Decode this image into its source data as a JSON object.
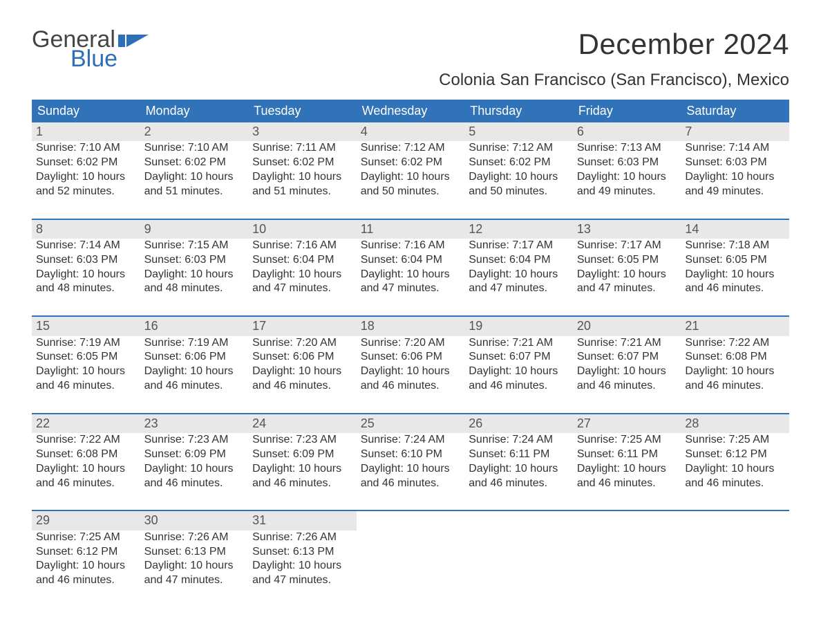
{
  "logo": {
    "text1": "General",
    "text2": "Blue",
    "flag_color": "#2d6fb6"
  },
  "header": {
    "month_title": "December 2024",
    "location": "Colonia San Francisco (San Francisco), Mexico"
  },
  "colors": {
    "header_bg": "#3173b8",
    "header_text": "#ffffff",
    "daynum_bg": "#e8e8e8",
    "daynum_border": "#3173b8",
    "body_text": "#333333",
    "page_bg": "#ffffff"
  },
  "weekdays": [
    "Sunday",
    "Monday",
    "Tuesday",
    "Wednesday",
    "Thursday",
    "Friday",
    "Saturday"
  ],
  "weeks": [
    [
      {
        "day": "1",
        "sunrise": "Sunrise: 7:10 AM",
        "sunset": "Sunset: 6:02 PM",
        "d1": "Daylight: 10 hours",
        "d2": "and 52 minutes."
      },
      {
        "day": "2",
        "sunrise": "Sunrise: 7:10 AM",
        "sunset": "Sunset: 6:02 PM",
        "d1": "Daylight: 10 hours",
        "d2": "and 51 minutes."
      },
      {
        "day": "3",
        "sunrise": "Sunrise: 7:11 AM",
        "sunset": "Sunset: 6:02 PM",
        "d1": "Daylight: 10 hours",
        "d2": "and 51 minutes."
      },
      {
        "day": "4",
        "sunrise": "Sunrise: 7:12 AM",
        "sunset": "Sunset: 6:02 PM",
        "d1": "Daylight: 10 hours",
        "d2": "and 50 minutes."
      },
      {
        "day": "5",
        "sunrise": "Sunrise: 7:12 AM",
        "sunset": "Sunset: 6:02 PM",
        "d1": "Daylight: 10 hours",
        "d2": "and 50 minutes."
      },
      {
        "day": "6",
        "sunrise": "Sunrise: 7:13 AM",
        "sunset": "Sunset: 6:03 PM",
        "d1": "Daylight: 10 hours",
        "d2": "and 49 minutes."
      },
      {
        "day": "7",
        "sunrise": "Sunrise: 7:14 AM",
        "sunset": "Sunset: 6:03 PM",
        "d1": "Daylight: 10 hours",
        "d2": "and 49 minutes."
      }
    ],
    [
      {
        "day": "8",
        "sunrise": "Sunrise: 7:14 AM",
        "sunset": "Sunset: 6:03 PM",
        "d1": "Daylight: 10 hours",
        "d2": "and 48 minutes."
      },
      {
        "day": "9",
        "sunrise": "Sunrise: 7:15 AM",
        "sunset": "Sunset: 6:03 PM",
        "d1": "Daylight: 10 hours",
        "d2": "and 48 minutes."
      },
      {
        "day": "10",
        "sunrise": "Sunrise: 7:16 AM",
        "sunset": "Sunset: 6:04 PM",
        "d1": "Daylight: 10 hours",
        "d2": "and 47 minutes."
      },
      {
        "day": "11",
        "sunrise": "Sunrise: 7:16 AM",
        "sunset": "Sunset: 6:04 PM",
        "d1": "Daylight: 10 hours",
        "d2": "and 47 minutes."
      },
      {
        "day": "12",
        "sunrise": "Sunrise: 7:17 AM",
        "sunset": "Sunset: 6:04 PM",
        "d1": "Daylight: 10 hours",
        "d2": "and 47 minutes."
      },
      {
        "day": "13",
        "sunrise": "Sunrise: 7:17 AM",
        "sunset": "Sunset: 6:05 PM",
        "d1": "Daylight: 10 hours",
        "d2": "and 47 minutes."
      },
      {
        "day": "14",
        "sunrise": "Sunrise: 7:18 AM",
        "sunset": "Sunset: 6:05 PM",
        "d1": "Daylight: 10 hours",
        "d2": "and 46 minutes."
      }
    ],
    [
      {
        "day": "15",
        "sunrise": "Sunrise: 7:19 AM",
        "sunset": "Sunset: 6:05 PM",
        "d1": "Daylight: 10 hours",
        "d2": "and 46 minutes."
      },
      {
        "day": "16",
        "sunrise": "Sunrise: 7:19 AM",
        "sunset": "Sunset: 6:06 PM",
        "d1": "Daylight: 10 hours",
        "d2": "and 46 minutes."
      },
      {
        "day": "17",
        "sunrise": "Sunrise: 7:20 AM",
        "sunset": "Sunset: 6:06 PM",
        "d1": "Daylight: 10 hours",
        "d2": "and 46 minutes."
      },
      {
        "day": "18",
        "sunrise": "Sunrise: 7:20 AM",
        "sunset": "Sunset: 6:06 PM",
        "d1": "Daylight: 10 hours",
        "d2": "and 46 minutes."
      },
      {
        "day": "19",
        "sunrise": "Sunrise: 7:21 AM",
        "sunset": "Sunset: 6:07 PM",
        "d1": "Daylight: 10 hours",
        "d2": "and 46 minutes."
      },
      {
        "day": "20",
        "sunrise": "Sunrise: 7:21 AM",
        "sunset": "Sunset: 6:07 PM",
        "d1": "Daylight: 10 hours",
        "d2": "and 46 minutes."
      },
      {
        "day": "21",
        "sunrise": "Sunrise: 7:22 AM",
        "sunset": "Sunset: 6:08 PM",
        "d1": "Daylight: 10 hours",
        "d2": "and 46 minutes."
      }
    ],
    [
      {
        "day": "22",
        "sunrise": "Sunrise: 7:22 AM",
        "sunset": "Sunset: 6:08 PM",
        "d1": "Daylight: 10 hours",
        "d2": "and 46 minutes."
      },
      {
        "day": "23",
        "sunrise": "Sunrise: 7:23 AM",
        "sunset": "Sunset: 6:09 PM",
        "d1": "Daylight: 10 hours",
        "d2": "and 46 minutes."
      },
      {
        "day": "24",
        "sunrise": "Sunrise: 7:23 AM",
        "sunset": "Sunset: 6:09 PM",
        "d1": "Daylight: 10 hours",
        "d2": "and 46 minutes."
      },
      {
        "day": "25",
        "sunrise": "Sunrise: 7:24 AM",
        "sunset": "Sunset: 6:10 PM",
        "d1": "Daylight: 10 hours",
        "d2": "and 46 minutes."
      },
      {
        "day": "26",
        "sunrise": "Sunrise: 7:24 AM",
        "sunset": "Sunset: 6:11 PM",
        "d1": "Daylight: 10 hours",
        "d2": "and 46 minutes."
      },
      {
        "day": "27",
        "sunrise": "Sunrise: 7:25 AM",
        "sunset": "Sunset: 6:11 PM",
        "d1": "Daylight: 10 hours",
        "d2": "and 46 minutes."
      },
      {
        "day": "28",
        "sunrise": "Sunrise: 7:25 AM",
        "sunset": "Sunset: 6:12 PM",
        "d1": "Daylight: 10 hours",
        "d2": "and 46 minutes."
      }
    ],
    [
      {
        "day": "29",
        "sunrise": "Sunrise: 7:25 AM",
        "sunset": "Sunset: 6:12 PM",
        "d1": "Daylight: 10 hours",
        "d2": "and 46 minutes."
      },
      {
        "day": "30",
        "sunrise": "Sunrise: 7:26 AM",
        "sunset": "Sunset: 6:13 PM",
        "d1": "Daylight: 10 hours",
        "d2": "and 47 minutes."
      },
      {
        "day": "31",
        "sunrise": "Sunrise: 7:26 AM",
        "sunset": "Sunset: 6:13 PM",
        "d1": "Daylight: 10 hours",
        "d2": "and 47 minutes."
      },
      null,
      null,
      null,
      null
    ]
  ]
}
